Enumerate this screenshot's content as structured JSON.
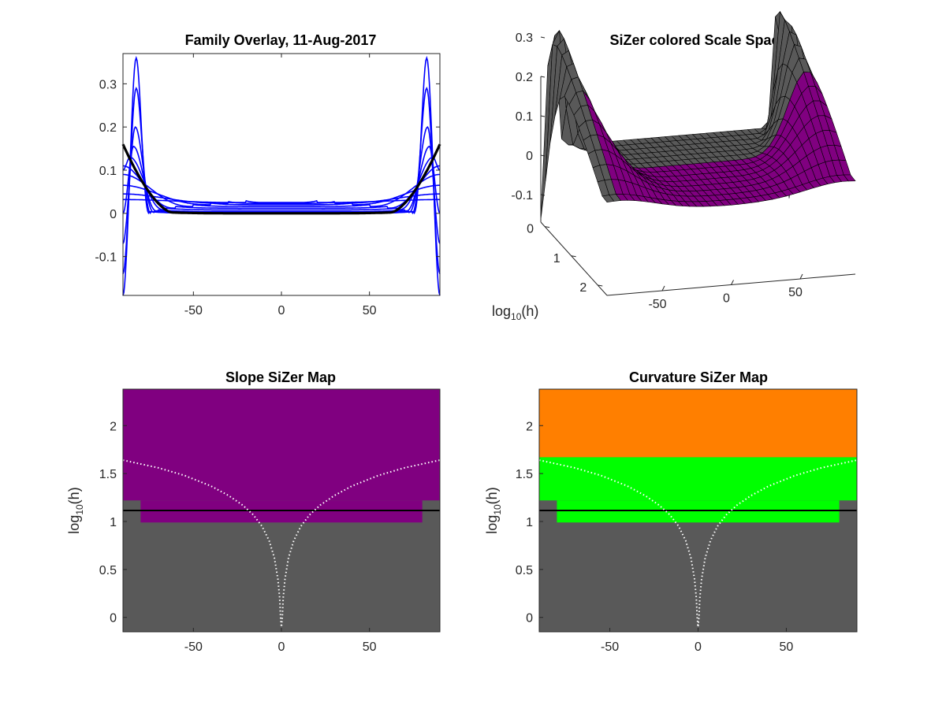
{
  "chart_data": [
    {
      "id": "family",
      "type": "line",
      "title": "Family Overlay, 11-Aug-2017",
      "xlabel": "",
      "ylabel": "",
      "xlim": [
        -90,
        90
      ],
      "ylim": [
        -0.19,
        0.37
      ],
      "xticks": [
        "-50",
        "0",
        "50"
      ],
      "xtick_values": [
        -50,
        0,
        50
      ],
      "yticks": [
        "-0.1",
        "0",
        "0.1",
        "0.2",
        "0.3"
      ],
      "ytick_values": [
        -0.1,
        0,
        0.1,
        0.2,
        0.3
      ],
      "grid": false,
      "series_color": "#0000ff",
      "highlight_color": "#000000",
      "family": [
        {
          "edge_x": 75,
          "peak_x": 82.5,
          "peak_y": 0.36,
          "floor_y": 0.0,
          "end_y": -0.19
        },
        {
          "edge_x": 74,
          "peak_x": 82.5,
          "peak_y": 0.29,
          "floor_y": 0.0,
          "end_y": -0.14
        },
        {
          "edge_x": 72,
          "peak_x": 83,
          "peak_y": 0.2,
          "floor_y": 0.002,
          "end_y": -0.07
        },
        {
          "edge_x": 70,
          "peak_x": 84,
          "peak_y": 0.155,
          "floor_y": 0.004,
          "end_y": 0.0
        },
        {
          "edge_x": 66,
          "peak_x": 86,
          "peak_y": 0.13,
          "floor_y": 0.008,
          "end_y": 0.1
        },
        {
          "edge_x": 60,
          "peak_x": 90,
          "peak_y": 0.11,
          "floor_y": 0.012,
          "end_y": 0.11
        },
        {
          "edge_x": 50,
          "peak_x": 90,
          "peak_y": 0.09,
          "floor_y": 0.016,
          "end_y": 0.09
        },
        {
          "edge_x": 40,
          "peak_x": 90,
          "peak_y": 0.065,
          "floor_y": 0.02,
          "end_y": 0.065
        },
        {
          "edge_x": 30,
          "peak_x": 90,
          "peak_y": 0.045,
          "floor_y": 0.023,
          "end_y": 0.045
        },
        {
          "edge_x": 20,
          "peak_x": 90,
          "peak_y": 0.032,
          "floor_y": 0.025,
          "end_y": 0.032
        }
      ],
      "highlight": {
        "peak_x": 90,
        "peak_y": 0.16,
        "floor_y": 0.0,
        "edge_x": 62
      }
    },
    {
      "id": "surface",
      "type": "surface",
      "title": "SiZer colored Scale Space",
      "xticks": [
        "-50",
        "0",
        "50"
      ],
      "xtick_values": [
        -50,
        0,
        50
      ],
      "hticks": [
        "0",
        "1",
        "2"
      ],
      "htick_values": [
        0,
        1,
        2
      ],
      "zticks": [
        "-0.1",
        "0",
        "0.1",
        "0.2",
        "0.3"
      ],
      "ztick_values": [
        -0.1,
        0,
        0.1,
        0.2,
        0.3
      ],
      "ylabel_text": "log",
      "ylabel_sub": "10",
      "ylabel_tail": "(h)",
      "xlim": [
        -90,
        90
      ],
      "hlim": [
        -0.15,
        2.35
      ],
      "zlim": [
        -0.19,
        0.37
      ],
      "colors": {
        "gray": "#595959",
        "purple": "#800080",
        "edge": "#000000"
      }
    },
    {
      "id": "slope",
      "type": "heatmap",
      "title": "Slope SiZer Map",
      "ylabel_text": "log",
      "ylabel_sub": "10",
      "ylabel_tail": "(h)",
      "xlim": [
        -90,
        90
      ],
      "ylim": [
        -0.15,
        2.38
      ],
      "xticks": [
        "-50",
        "0",
        "50"
      ],
      "xtick_values": [
        -50,
        0,
        50
      ],
      "yticks": [
        "0",
        "0.5",
        "1",
        "1.5",
        "2"
      ],
      "ytick_values": [
        0,
        0.5,
        1,
        1.5,
        2
      ],
      "regions": [
        {
          "color": "#595959",
          "x0": -90,
          "x1": 90,
          "y0": -0.15,
          "y1": 2.38
        },
        {
          "color": "#800080",
          "x0": -90,
          "x1": 90,
          "y0": 1.22,
          "y1": 2.38
        },
        {
          "color": "#800080",
          "x0": -80,
          "x1": 80,
          "y0": 0.99,
          "y1": 1.22
        }
      ],
      "hline": 1.115,
      "hline_color": "#000000",
      "curve_color": "#ffffff",
      "curve": [
        [
          0,
          -0.1
        ],
        [
          0.5,
          0.0
        ],
        [
          1,
          0.2
        ],
        [
          2,
          0.4
        ],
        [
          4,
          0.62
        ],
        [
          7,
          0.8
        ],
        [
          11,
          0.95
        ],
        [
          16,
          1.07
        ],
        [
          22,
          1.17
        ],
        [
          30,
          1.27
        ],
        [
          40,
          1.37
        ],
        [
          55,
          1.48
        ],
        [
          70,
          1.56
        ],
        [
          90,
          1.64
        ]
      ]
    },
    {
      "id": "curvature",
      "type": "heatmap",
      "title": "Curvature SiZer Map",
      "ylabel_text": "log",
      "ylabel_sub": "10",
      "ylabel_tail": "(h)",
      "xlim": [
        -90,
        90
      ],
      "ylim": [
        -0.15,
        2.38
      ],
      "xticks": [
        "-50",
        "0",
        "50"
      ],
      "xtick_values": [
        -50,
        0,
        50
      ],
      "yticks": [
        "0",
        "0.5",
        "1",
        "1.5",
        "2"
      ],
      "ytick_values": [
        0,
        0.5,
        1,
        1.5,
        2
      ],
      "regions": [
        {
          "color": "#595959",
          "x0": -90,
          "x1": 90,
          "y0": -0.15,
          "y1": 2.38
        },
        {
          "color": "#ff7f00",
          "x0": -90,
          "x1": 90,
          "y0": 1.67,
          "y1": 2.38
        },
        {
          "color": "#00ff00",
          "x0": -90,
          "x1": 90,
          "y0": 1.22,
          "y1": 1.67
        },
        {
          "color": "#00ff00",
          "x0": -80,
          "x1": 80,
          "y0": 0.99,
          "y1": 1.22
        }
      ],
      "hline": 1.115,
      "hline_color": "#000000",
      "curve_color": "#ffffff",
      "curve": [
        [
          0,
          -0.1
        ],
        [
          0.5,
          0.0
        ],
        [
          1,
          0.2
        ],
        [
          2,
          0.4
        ],
        [
          4,
          0.62
        ],
        [
          7,
          0.8
        ],
        [
          11,
          0.95
        ],
        [
          16,
          1.07
        ],
        [
          22,
          1.17
        ],
        [
          30,
          1.27
        ],
        [
          40,
          1.37
        ],
        [
          55,
          1.48
        ],
        [
          70,
          1.56
        ],
        [
          90,
          1.64
        ]
      ]
    }
  ]
}
